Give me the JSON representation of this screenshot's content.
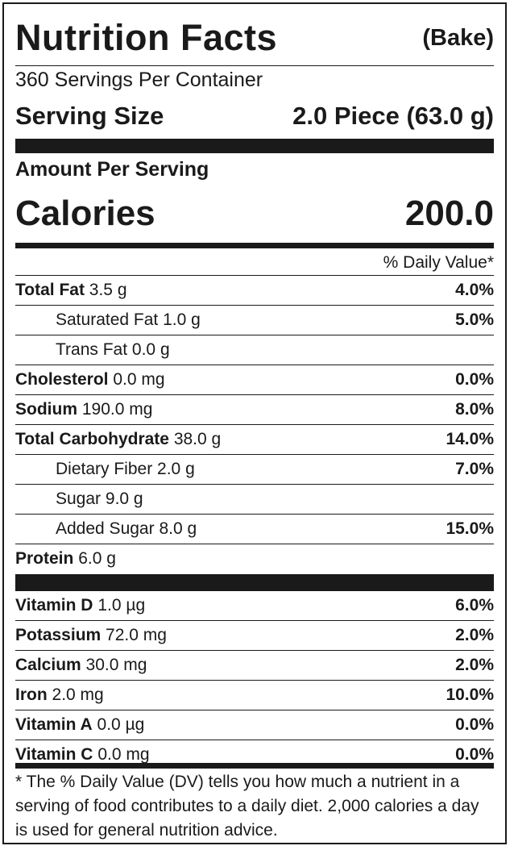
{
  "header": {
    "title": "Nutrition Facts",
    "variant": "(Bake)"
  },
  "servings_per_container": "360 Servings Per Container",
  "serving_size": {
    "label": "Serving Size",
    "value": "2.0 Piece (63.0 g)"
  },
  "amount_per_serving": "Amount Per Serving",
  "calories": {
    "label": "Calories",
    "value": "200.0"
  },
  "daily_value_header": "% Daily Value*",
  "nutrients": [
    {
      "name": "Total Fat",
      "amount": "3.5 g",
      "dv": "4.0%",
      "bold": true,
      "indent": false
    },
    {
      "name": "Saturated Fat",
      "amount": "1.0 g",
      "dv": "5.0%",
      "bold": false,
      "indent": true
    },
    {
      "name": "Trans Fat",
      "amount": "0.0 g",
      "dv": "",
      "bold": false,
      "indent": true
    },
    {
      "name": "Cholesterol",
      "amount": "0.0 mg",
      "dv": "0.0%",
      "bold": true,
      "indent": false
    },
    {
      "name": "Sodium",
      "amount": "190.0 mg",
      "dv": "8.0%",
      "bold": true,
      "indent": false
    },
    {
      "name": "Total Carbohydrate",
      "amount": "38.0 g",
      "dv": "14.0%",
      "bold": true,
      "indent": false
    },
    {
      "name": "Dietary Fiber",
      "amount": "2.0 g",
      "dv": "7.0%",
      "bold": false,
      "indent": true
    },
    {
      "name": "Sugar",
      "amount": "9.0 g",
      "dv": "",
      "bold": false,
      "indent": true
    },
    {
      "name": "Added Sugar",
      "amount": "8.0 g",
      "dv": "15.0%",
      "bold": false,
      "indent": true
    },
    {
      "name": "Protein",
      "amount": "6.0 g",
      "dv": "",
      "bold": true,
      "indent": false
    }
  ],
  "vitamins": [
    {
      "name": "Vitamin D",
      "amount": "1.0 µg",
      "dv": "6.0%"
    },
    {
      "name": "Potassium",
      "amount": "72.0 mg",
      "dv": "2.0%"
    },
    {
      "name": "Calcium",
      "amount": "30.0 mg",
      "dv": "2.0%"
    },
    {
      "name": "Iron",
      "amount": "2.0 mg",
      "dv": "10.0%"
    },
    {
      "name": "Vitamin A",
      "amount": "0.0 µg",
      "dv": "0.0%"
    },
    {
      "name": "Vitamin C",
      "amount": "0.0 mg",
      "dv": "0.0%"
    }
  ],
  "footnote": "* The % Daily Value (DV) tells you how much a nutrient in a serving of food contributes to a daily diet. 2,000 calories a day is used for general nutrition advice."
}
